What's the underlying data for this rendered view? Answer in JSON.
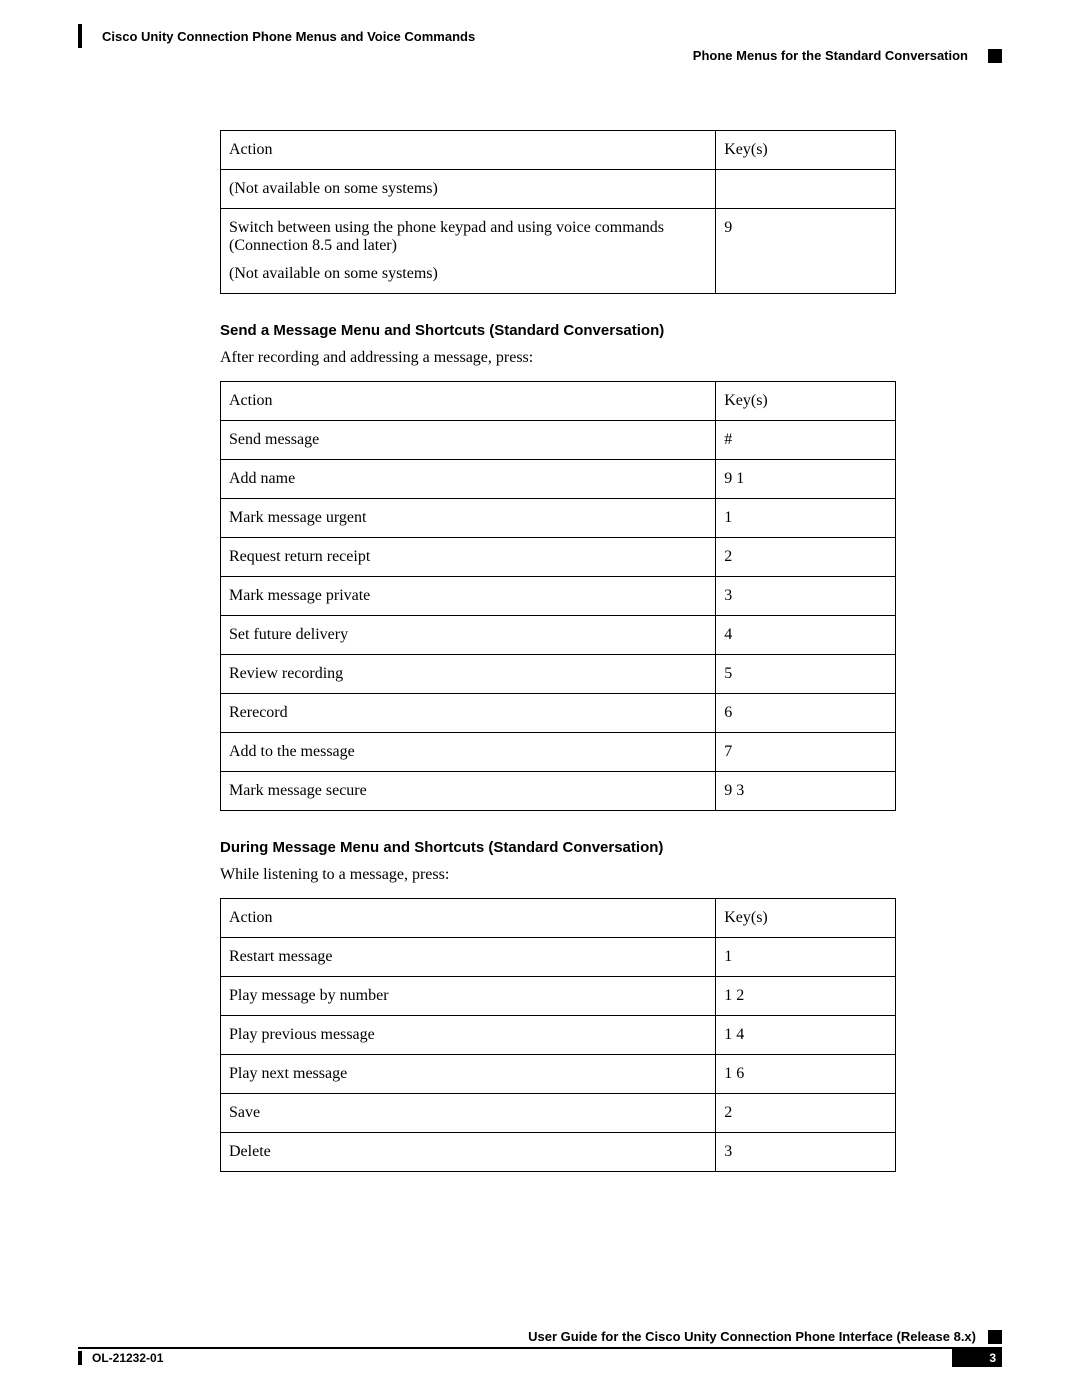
{
  "header": {
    "doc_title": "Cisco Unity Connection Phone Menus and Voice Commands",
    "section_title": "Phone Menus for the Standard Conversation"
  },
  "table1": {
    "header_action": "Action",
    "header_key": "Key(s)",
    "row1_action": "(Not available on some systems)",
    "row1_key": "",
    "row2_action_l1": "Switch between using the phone keypad and using voice commands (Connection 8.5 and later)",
    "row2_action_l2": "(Not available on some systems)",
    "row2_key": "9"
  },
  "section2": {
    "title": "Send a Message Menu and Shortcuts (Standard Conversation)",
    "intro": "After recording and addressing a message, press:",
    "header_action": "Action",
    "header_key": "Key(s)",
    "rows": [
      {
        "action": "Send message",
        "key": "#",
        "bold": false
      },
      {
        "action": "Add name",
        "key": "9 1",
        "bold": true
      },
      {
        "action": "Mark message urgent",
        "key": "1",
        "bold": true
      },
      {
        "action": "Request return receipt",
        "key": "2",
        "bold": true
      },
      {
        "action": "Mark message private",
        "key": "3",
        "bold": true
      },
      {
        "action": "Set future delivery",
        "key": "4",
        "bold": true
      },
      {
        "action": "Review recording",
        "key": "5",
        "bold": true
      },
      {
        "action": "Rerecord",
        "key": "6",
        "bold": true
      },
      {
        "action": "Add to the message",
        "key": "7",
        "bold": true
      },
      {
        "action": "Mark message secure",
        "key": "9 3",
        "bold": true
      }
    ]
  },
  "section3": {
    "title": "During Message Menu and Shortcuts (Standard Conversation)",
    "intro": "While listening to a message, press:",
    "header_action": "Action",
    "header_key": "Key(s)",
    "rows": [
      {
        "action": "Restart message",
        "key": "1",
        "bold": true
      },
      {
        "action": "Play message by number",
        "key": "1 2",
        "bold": true
      },
      {
        "action": "Play previous message",
        "key": "1 4",
        "bold": true
      },
      {
        "action": "Play next message",
        "key": "1 6",
        "bold": true
      },
      {
        "action": "Save",
        "key": "2",
        "bold": true
      },
      {
        "action": "Delete",
        "key": "3",
        "bold": true
      }
    ]
  },
  "footer": {
    "guide": "User Guide for the Cisco Unity Connection Phone Interface (Release 8.x)",
    "doc_id": "OL-21232-01",
    "page": "3"
  }
}
